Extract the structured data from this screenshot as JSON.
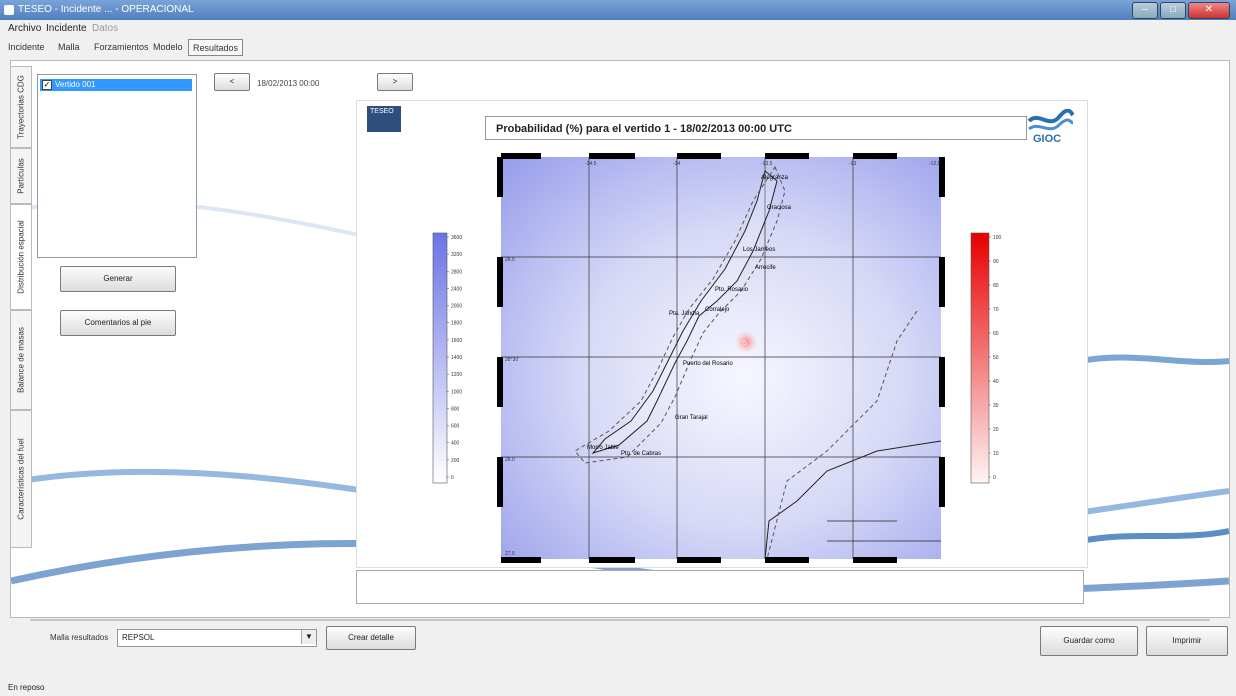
{
  "window": {
    "title": "TESEO - Incidente ... - OPERACIONAL"
  },
  "menu": {
    "items": [
      "Archivo",
      "Incidente",
      "Datos"
    ]
  },
  "tabs": [
    {
      "label": "Incidente"
    },
    {
      "label": "Malla"
    },
    {
      "label": "Forzamientos"
    },
    {
      "label": "Modelo"
    },
    {
      "label": "Resultados",
      "active": true
    }
  ],
  "side_tabs": [
    "Trayectorias CDG",
    "Partículas",
    "Distribución espacial",
    "Balance de masas",
    "Características del fuel"
  ],
  "spill_list": {
    "items": [
      {
        "label": "Vertido 001",
        "checked": true
      }
    ]
  },
  "nav": {
    "prev_label": "<",
    "next_label": ">",
    "date": "18/02/2013 00:00"
  },
  "buttons": {
    "generate": "Generar",
    "footer_comments": "Comentarios al pie",
    "create_detail": "Crear detalle",
    "save_as": "Guardar como",
    "print": "Imprimir"
  },
  "map": {
    "title": "Probabilidad (%) para el vertido 1 - 18/02/2013 00:00 UTC",
    "logos": {
      "left": "TESEO",
      "right": "GIOC"
    },
    "left_scale": {
      "labels": [
        "3600",
        "3200",
        "2800",
        "2400",
        "2000",
        "1800",
        "1600",
        "1400",
        "1200",
        "1000",
        "800",
        "600",
        "400",
        "200",
        "0"
      ],
      "color": "#6b74e6"
    },
    "right_scale": {
      "labels": [
        "100",
        "90",
        "80",
        "70",
        "60",
        "50",
        "40",
        "30",
        "20",
        "10",
        "0"
      ],
      "color": "#e60000"
    },
    "lat_labels": [
      "28.5",
      "28°30'",
      "28.0",
      "27.5"
    ],
    "lon_labels": [
      "-14.5",
      "-14",
      "-13.5",
      "-13",
      "-12.5"
    ],
    "places": [
      {
        "name": "Alegranza"
      },
      {
        "name": "Graciosa"
      },
      {
        "name": "Los Jameos"
      },
      {
        "name": "Arrecife"
      },
      {
        "name": "Pto. Rosario"
      },
      {
        "name": "Pta. Jandía"
      },
      {
        "name": "Corralejo"
      },
      {
        "name": "Puerto del Rosario"
      },
      {
        "name": "Gran Tarajal"
      },
      {
        "name": "Morro Jable"
      },
      {
        "name": "Pto. de Cabras"
      }
    ],
    "probability_spot": {
      "value": "5"
    }
  },
  "bottom": {
    "mesh_label": "Malla resultados",
    "mesh_value": "REPSOL"
  },
  "status": {
    "text": "En reposo"
  }
}
